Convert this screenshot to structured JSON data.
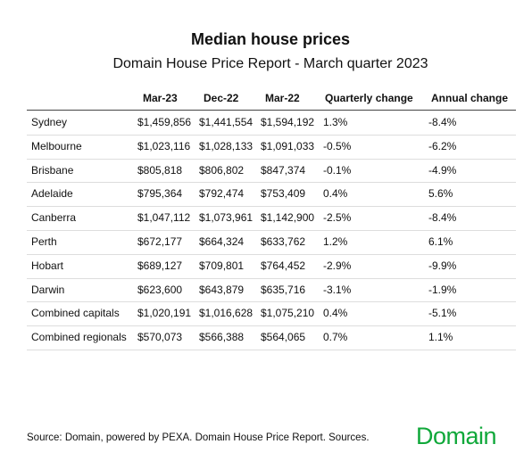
{
  "header": {
    "title": "Median house prices",
    "subtitle": "Domain House Price Report - March quarter 2023"
  },
  "table": {
    "columns": [
      "Mar-23",
      "Dec-22",
      "Mar-22",
      "Quarterly change",
      "Annual change"
    ],
    "rows": [
      [
        "Sydney",
        "$1,459,856",
        "$1,441,554",
        "$1,594,192",
        "1.3%",
        "-8.4%"
      ],
      [
        "Melbourne",
        "$1,023,116",
        "$1,028,133",
        "$1,091,033",
        "-0.5%",
        "-6.2%"
      ],
      [
        "Brisbane",
        "$805,818",
        "$806,802",
        "$847,374",
        "-0.1%",
        "-4.9%"
      ],
      [
        "Adelaide",
        "$795,364",
        "$792,474",
        "$753,409",
        "0.4%",
        "5.6%"
      ],
      [
        "Canberra",
        "$1,047,112",
        "$1,073,961",
        "$1,142,900",
        "-2.5%",
        "-8.4%"
      ],
      [
        "Perth",
        "$672,177",
        "$664,324",
        "$633,762",
        "1.2%",
        "6.1%"
      ],
      [
        "Hobart",
        "$689,127",
        "$709,801",
        "$764,452",
        "-2.9%",
        "-9.9%"
      ],
      [
        "Darwin",
        "$623,600",
        "$643,879",
        "$635,716",
        "-3.1%",
        "-1.9%"
      ],
      [
        "Combined capitals",
        "$1,020,191",
        "$1,016,628",
        "$1,075,210",
        "0.4%",
        "-5.1%"
      ],
      [
        "Combined regionals",
        "$570,073",
        "$566,388",
        "$564,065",
        "0.7%",
        "1.1%"
      ]
    ]
  },
  "footer": {
    "source": "Source: Domain, powered by PEXA. Domain House Price Report. Sources.",
    "logo": "Domain"
  }
}
